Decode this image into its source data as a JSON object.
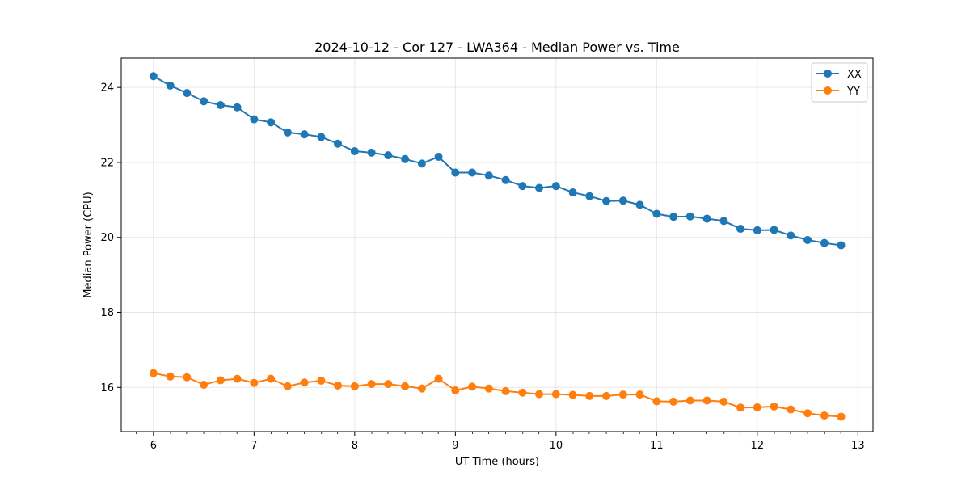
{
  "chart_data": {
    "type": "line",
    "title": "2024-10-12 - Cor 127 - LWA364 - Median Power vs. Time",
    "xlabel": "UT Time (hours)",
    "ylabel": "Median Power (CPU)",
    "xlim": [
      5.68,
      13.15
    ],
    "ylim": [
      14.82,
      24.78
    ],
    "xticks": [
      6,
      7,
      8,
      9,
      10,
      11,
      12,
      13
    ],
    "xtick_labels": [
      "6",
      "7",
      "8",
      "9",
      "10",
      "11",
      "12",
      "13"
    ],
    "xminor": [
      5.67,
      5.83,
      6.17,
      6.33,
      6.5,
      6.67,
      6.83,
      7.17,
      7.33,
      7.5,
      7.67,
      7.83,
      8.17,
      8.33,
      8.5,
      8.67,
      8.83,
      9.17,
      9.33,
      9.5,
      9.67,
      9.83,
      10.17,
      10.33,
      10.5,
      10.67,
      10.83,
      11.17,
      11.33,
      11.5,
      11.67,
      11.83,
      12.17,
      12.33,
      12.5,
      12.67,
      12.83,
      13.17
    ],
    "yticks": [
      16,
      18,
      20,
      22,
      24
    ],
    "ytick_labels": [
      "16",
      "18",
      "20",
      "22",
      "24"
    ],
    "grid": true,
    "legend_position": "top-right",
    "x": [
      6.0,
      6.167,
      6.333,
      6.5,
      6.667,
      6.833,
      7.0,
      7.167,
      7.333,
      7.5,
      7.667,
      7.833,
      8.0,
      8.167,
      8.333,
      8.5,
      8.667,
      8.833,
      9.0,
      9.167,
      9.333,
      9.5,
      9.667,
      9.833,
      10.0,
      10.167,
      10.333,
      10.5,
      10.667,
      10.833,
      11.0,
      11.167,
      11.333,
      11.5,
      11.667,
      11.833,
      12.0,
      12.167,
      12.333,
      12.5,
      12.667,
      12.833
    ],
    "series": [
      {
        "name": "XX",
        "color": "#1f77b4",
        "values": [
          24.3,
          24.05,
          23.85,
          23.63,
          23.53,
          23.47,
          23.15,
          23.07,
          22.8,
          22.75,
          22.68,
          22.5,
          22.3,
          22.26,
          22.19,
          22.09,
          21.97,
          22.15,
          21.73,
          21.73,
          21.65,
          21.53,
          21.37,
          21.32,
          21.37,
          21.2,
          21.1,
          20.97,
          20.98,
          20.87,
          20.63,
          20.55,
          20.56,
          20.5,
          20.44,
          20.23,
          20.19,
          20.2,
          20.05,
          19.93,
          19.85,
          19.79
        ]
      },
      {
        "name": "YY",
        "color": "#ff7f0e",
        "values": [
          16.38,
          16.29,
          16.27,
          16.07,
          16.19,
          16.23,
          16.12,
          16.23,
          16.03,
          16.13,
          16.18,
          16.05,
          16.03,
          16.09,
          16.09,
          16.03,
          15.97,
          16.23,
          15.92,
          16.02,
          15.97,
          15.9,
          15.86,
          15.82,
          15.82,
          15.8,
          15.77,
          15.77,
          15.81,
          15.81,
          15.63,
          15.62,
          15.65,
          15.65,
          15.62,
          15.46,
          15.47,
          15.49,
          15.41,
          15.31,
          15.25,
          15.22
        ]
      }
    ]
  }
}
